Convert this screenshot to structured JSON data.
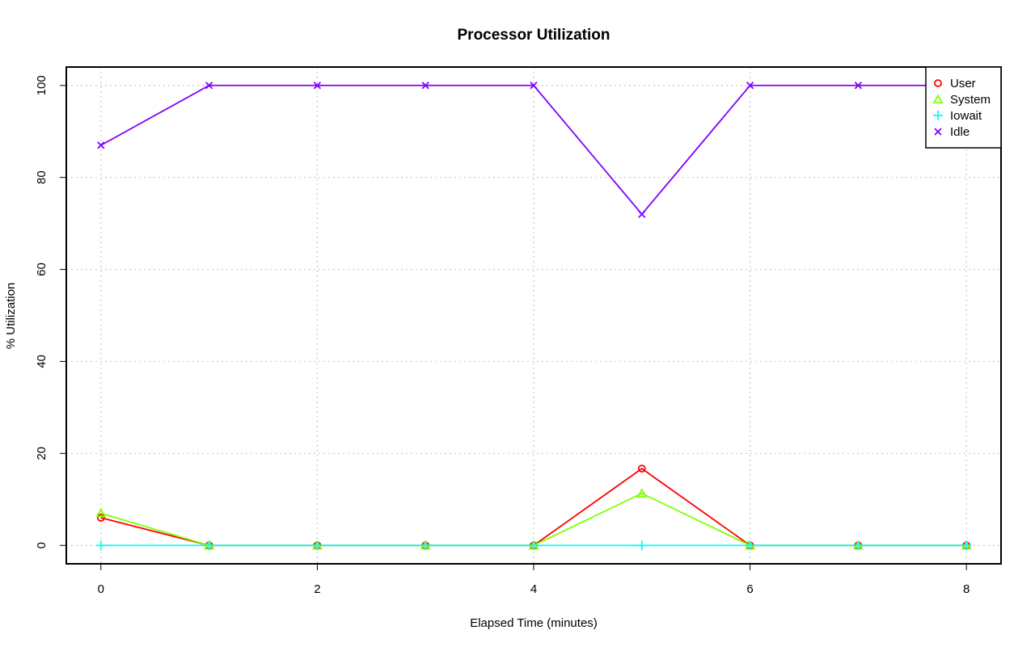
{
  "chart_data": {
    "type": "line",
    "title": "Processor Utilization",
    "xlabel": "Elapsed Time (minutes)",
    "ylabel": "% Utilization",
    "x": [
      0,
      1,
      2,
      3,
      4,
      5,
      6,
      7,
      8
    ],
    "xlim": [
      -0.32,
      8.32
    ],
    "ylim": [
      -4,
      104
    ],
    "xticks": [
      0,
      2,
      4,
      6,
      8
    ],
    "yticks": [
      0,
      20,
      40,
      60,
      80,
      100
    ],
    "grid": true,
    "legend_position": "top-right",
    "series": [
      {
        "name": "User",
        "color": "#ff0000",
        "marker": "circle",
        "values": [
          6,
          0,
          0,
          0,
          0,
          16.7,
          0,
          0,
          0
        ]
      },
      {
        "name": "System",
        "color": "#80ff00",
        "marker": "triangle",
        "values": [
          7,
          0,
          0,
          0,
          0,
          11.3,
          0,
          0,
          0
        ]
      },
      {
        "name": "Iowait",
        "color": "#00ffff",
        "marker": "plus",
        "values": [
          0,
          0,
          0,
          0,
          0,
          0,
          0,
          0,
          0
        ]
      },
      {
        "name": "Idle",
        "color": "#8000ff",
        "marker": "cross",
        "values": [
          87,
          100,
          100,
          100,
          100,
          72,
          100,
          100,
          100
        ]
      }
    ]
  }
}
